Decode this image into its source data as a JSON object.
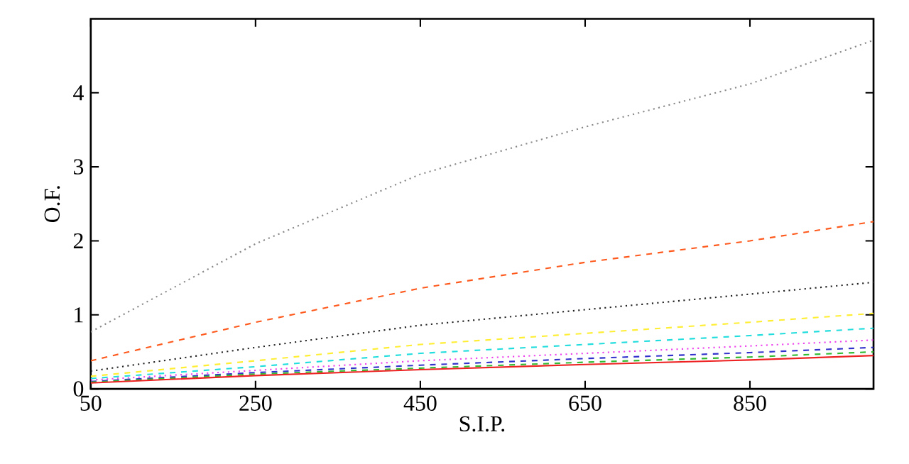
{
  "chart_data": {
    "type": "line",
    "xlabel": "S.I.P.",
    "ylabel": "O.F.",
    "x": [
      50,
      250,
      450,
      650,
      850,
      1000
    ],
    "xlim": [
      50,
      1000
    ],
    "ylim": [
      0,
      5
    ],
    "xticks": [
      50,
      250,
      450,
      650,
      850
    ],
    "yticks": [
      0,
      1,
      2,
      3,
      4
    ],
    "grid": false,
    "marker": "none",
    "series": [
      {
        "color": "#888888",
        "line_style": "dotted",
        "values": [
          0.77,
          1.96,
          2.9,
          3.54,
          4.12,
          4.71
        ]
      },
      {
        "color": "#ff5a1e",
        "line_style": "dashed",
        "values": [
          0.38,
          0.9,
          1.36,
          1.71,
          2.0,
          2.26
        ]
      },
      {
        "color": "#222222",
        "line_style": "dotted",
        "values": [
          0.24,
          0.56,
          0.86,
          1.07,
          1.28,
          1.44
        ]
      },
      {
        "color": "#ffee33",
        "line_style": "dashed",
        "values": [
          0.17,
          0.38,
          0.6,
          0.75,
          0.9,
          1.02
        ]
      },
      {
        "color": "#22dddd",
        "line_style": "dashed",
        "values": [
          0.14,
          0.3,
          0.48,
          0.6,
          0.72,
          0.82
        ]
      },
      {
        "color": "#ee44ee",
        "line_style": "dotted",
        "values": [
          0.12,
          0.25,
          0.38,
          0.48,
          0.58,
          0.66
        ]
      },
      {
        "color": "#3333cc",
        "line_style": "dashed",
        "values": [
          0.1,
          0.22,
          0.32,
          0.41,
          0.49,
          0.56
        ]
      },
      {
        "color": "#33bb33",
        "line_style": "dashed",
        "values": [
          0.09,
          0.2,
          0.28,
          0.36,
          0.43,
          0.5
        ]
      },
      {
        "color": "#ee2222",
        "line_style": "solid",
        "values": [
          0.08,
          0.18,
          0.26,
          0.33,
          0.39,
          0.45
        ]
      }
    ]
  }
}
